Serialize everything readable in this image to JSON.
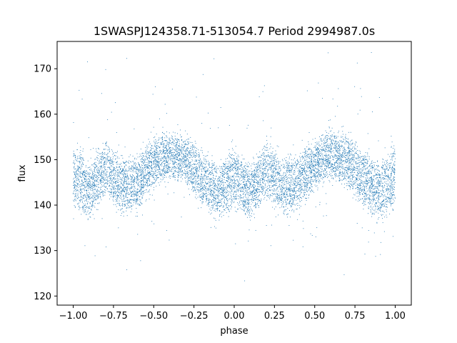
{
  "chart_data": {
    "type": "scatter",
    "title": "1SWASPJ124358.71-513054.7 Period 2994987.0s",
    "xlabel": "phase",
    "ylabel": "flux",
    "xlim": [
      -1.1,
      1.1
    ],
    "ylim": [
      118,
      176
    ],
    "xticks": [
      -1.0,
      -0.75,
      -0.5,
      -0.25,
      0.0,
      0.25,
      0.5,
      0.75,
      1.0
    ],
    "xtick_labels": [
      "−1.00",
      "−0.75",
      "−0.50",
      "−0.25",
      "0.00",
      "0.25",
      "0.50",
      "0.75",
      "1.00"
    ],
    "yticks": [
      120,
      130,
      140,
      150,
      160,
      170
    ],
    "ytick_labels": [
      "120",
      "130",
      "140",
      "150",
      "160",
      "170"
    ],
    "grid": false,
    "point_color": "#1f77b4",
    "series": [
      {
        "x_range": [
          -1.0,
          1.0
        ],
        "points": 9000,
        "profile": [
          {
            "x": -0.97,
            "y": 146,
            "spread": 7
          },
          {
            "x": -0.9,
            "y": 143,
            "spread": 6
          },
          {
            "x": -0.8,
            "y": 148,
            "spread": 6
          },
          {
            "x": -0.7,
            "y": 144,
            "spread": 6
          },
          {
            "x": -0.6,
            "y": 145,
            "spread": 6
          },
          {
            "x": -0.5,
            "y": 149,
            "spread": 5
          },
          {
            "x": -0.4,
            "y": 151,
            "spread": 5
          },
          {
            "x": -0.3,
            "y": 150,
            "spread": 5
          },
          {
            "x": -0.2,
            "y": 146,
            "spread": 6
          },
          {
            "x": -0.1,
            "y": 143,
            "spread": 6
          },
          {
            "x": 0.0,
            "y": 146,
            "spread": 7
          },
          {
            "x": 0.1,
            "y": 143,
            "spread": 6
          },
          {
            "x": 0.2,
            "y": 148,
            "spread": 6
          },
          {
            "x": 0.3,
            "y": 144,
            "spread": 6
          },
          {
            "x": 0.4,
            "y": 145,
            "spread": 6
          },
          {
            "x": 0.5,
            "y": 149,
            "spread": 5
          },
          {
            "x": 0.6,
            "y": 151,
            "spread": 5
          },
          {
            "x": 0.7,
            "y": 150,
            "spread": 5
          },
          {
            "x": 0.8,
            "y": 146,
            "spread": 6
          },
          {
            "x": 0.9,
            "y": 143,
            "spread": 6
          },
          {
            "x": 1.0,
            "y": 146,
            "spread": 7
          }
        ]
      }
    ]
  }
}
